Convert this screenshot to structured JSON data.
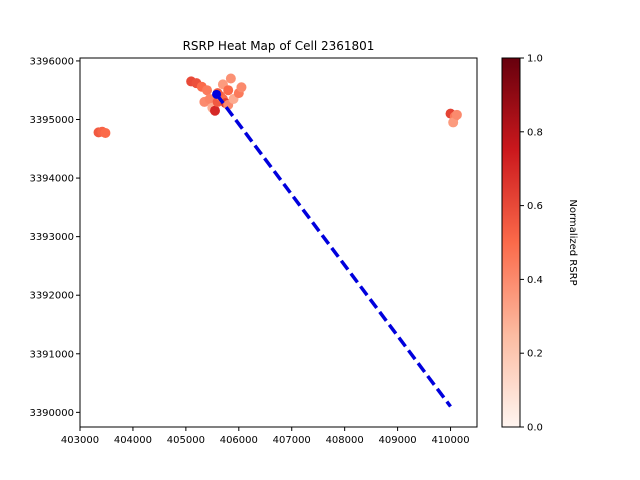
{
  "chart_data": {
    "type": "scatter",
    "title": "RSRP Heat Map of Cell 2361801",
    "xlabel": "",
    "ylabel": "",
    "xlim": [
      403000,
      410500
    ],
    "ylim": [
      3389750,
      3396050
    ],
    "x_ticks": [
      403000,
      404000,
      405000,
      406000,
      407000,
      408000,
      409000,
      410000
    ],
    "y_ticks": [
      3390000,
      3391000,
      3392000,
      3393000,
      3394000,
      3395000,
      3396000
    ],
    "colormap": "Reds",
    "colorbar": {
      "label": "Normalized RSRP",
      "range": [
        0,
        1
      ],
      "ticks": [
        "0.0",
        "0.2",
        "0.4",
        "0.6",
        "0.8",
        "1.0"
      ]
    },
    "points": [
      {
        "x": 403350,
        "y": 3394780,
        "v": 0.55
      },
      {
        "x": 403420,
        "y": 3394790,
        "v": 0.52
      },
      {
        "x": 403480,
        "y": 3394770,
        "v": 0.5
      },
      {
        "x": 405100,
        "y": 3395650,
        "v": 0.6
      },
      {
        "x": 405200,
        "y": 3395620,
        "v": 0.58
      },
      {
        "x": 405300,
        "y": 3395560,
        "v": 0.5
      },
      {
        "x": 405400,
        "y": 3395500,
        "v": 0.45
      },
      {
        "x": 405350,
        "y": 3395300,
        "v": 0.4
      },
      {
        "x": 405450,
        "y": 3395350,
        "v": 0.42
      },
      {
        "x": 405500,
        "y": 3395200,
        "v": 0.3
      },
      {
        "x": 405550,
        "y": 3395150,
        "v": 0.7
      },
      {
        "x": 405600,
        "y": 3395300,
        "v": 0.55
      },
      {
        "x": 405650,
        "y": 3395400,
        "v": 0.48
      },
      {
        "x": 405700,
        "y": 3395350,
        "v": 0.5
      },
      {
        "x": 405750,
        "y": 3395280,
        "v": 0.65
      },
      {
        "x": 405800,
        "y": 3395250,
        "v": 0.4
      },
      {
        "x": 405700,
        "y": 3395600,
        "v": 0.35
      },
      {
        "x": 405850,
        "y": 3395700,
        "v": 0.38
      },
      {
        "x": 405900,
        "y": 3395350,
        "v": 0.3
      },
      {
        "x": 406000,
        "y": 3395450,
        "v": 0.45
      },
      {
        "x": 406050,
        "y": 3395550,
        "v": 0.4
      },
      {
        "x": 405600,
        "y": 3395450,
        "v": 0.55
      },
      {
        "x": 405800,
        "y": 3395500,
        "v": 0.5
      },
      {
        "x": 410000,
        "y": 3395100,
        "v": 0.62
      },
      {
        "x": 410080,
        "y": 3395050,
        "v": 0.45
      },
      {
        "x": 410050,
        "y": 3394950,
        "v": 0.35
      },
      {
        "x": 410120,
        "y": 3395080,
        "v": 0.4
      }
    ],
    "cell_site": {
      "x": 405580,
      "y": 3395430
    },
    "direction_line": {
      "from": [
        405580,
        3395430
      ],
      "to": [
        410000,
        3390100
      ],
      "color": "#0000dd",
      "style": "dashed"
    }
  }
}
